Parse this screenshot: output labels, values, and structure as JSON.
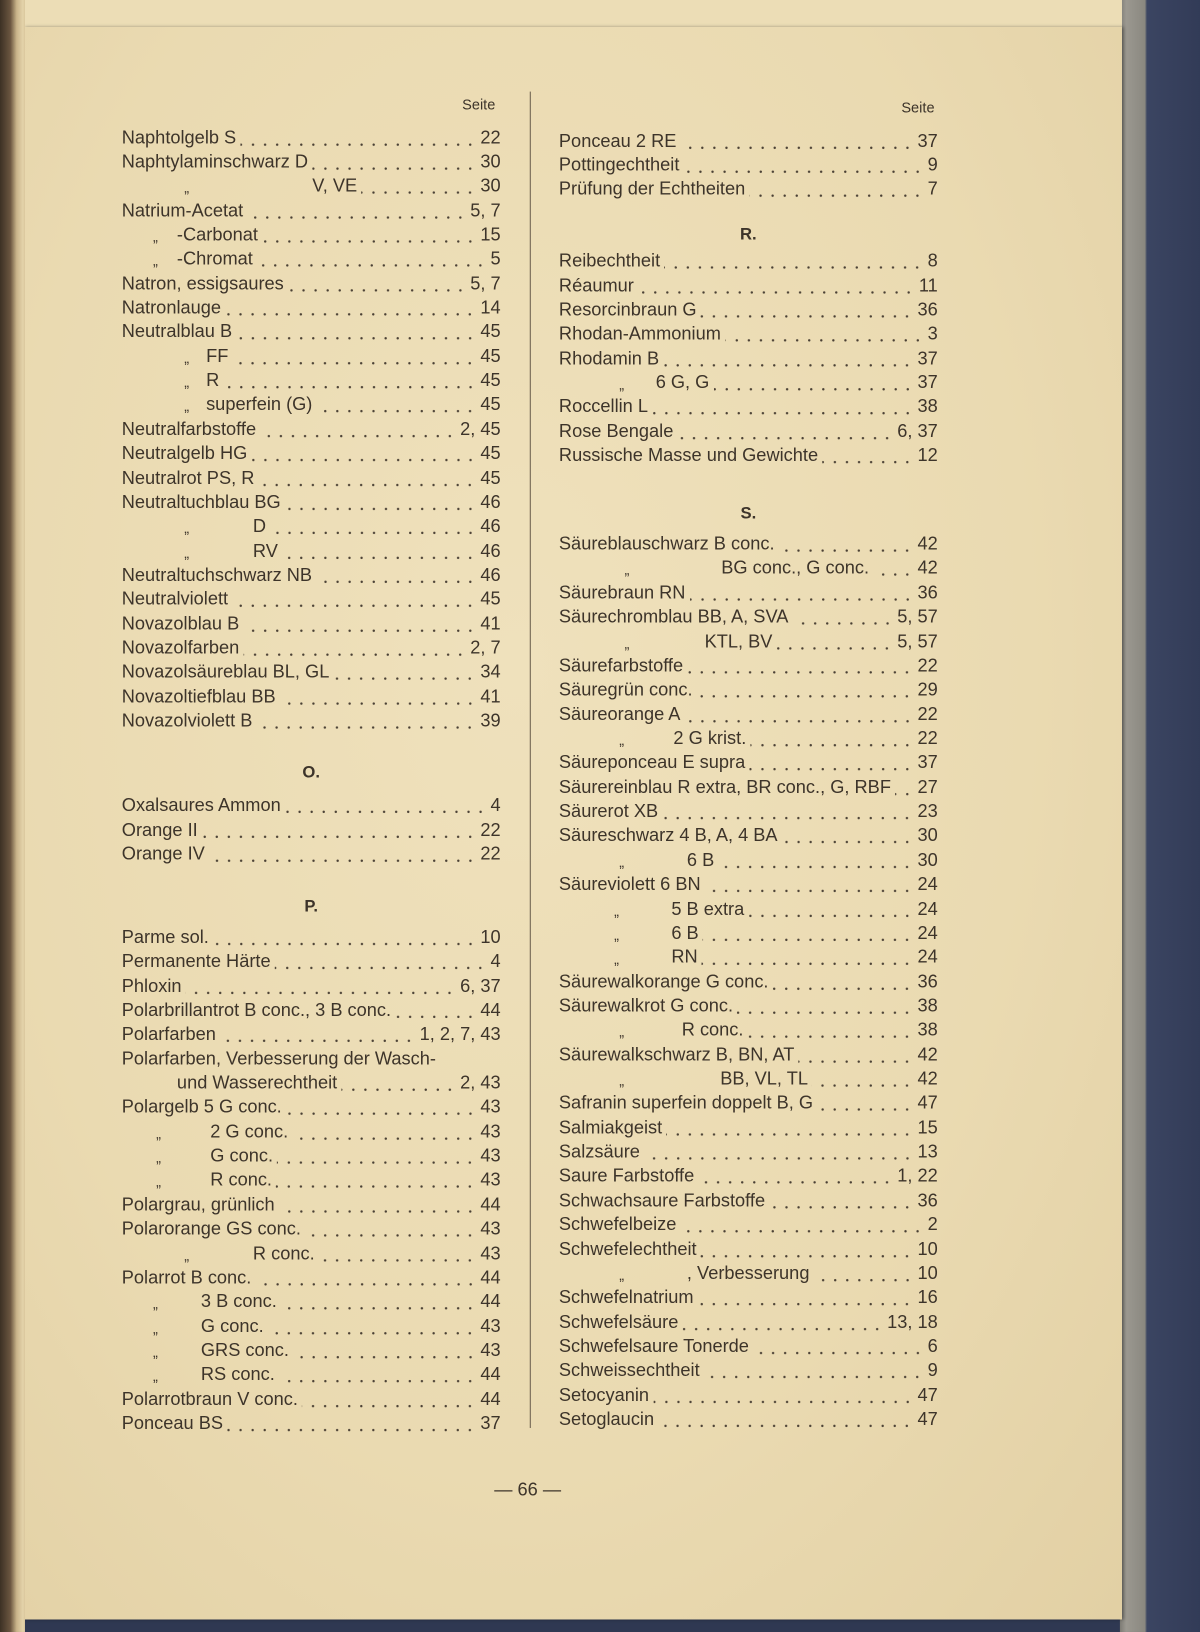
{
  "left_column": {
    "seite_label": "Seite",
    "items": [
      {
        "label": "Naphtolgelb S",
        "page": "22"
      },
      {
        "label": "Naphtylaminschwarz D",
        "page": "30"
      },
      {
        "ditto": "„",
        "label": "V, VE",
        "page": "30"
      },
      {
        "label": "Natrium-Acetat",
        "page": "5, 7"
      },
      {
        "ditto": "„",
        "label": "-Carbonat",
        "page": "15"
      },
      {
        "ditto": "„",
        "label": "-Chromat",
        "page": "5"
      },
      {
        "label": "Natron, essigsaures",
        "page": "5, 7"
      },
      {
        "label": "Natronlauge",
        "page": "14"
      },
      {
        "label": "Neutralblau B",
        "page": "45"
      },
      {
        "ditto": "„",
        "label": "FF",
        "page": "45"
      },
      {
        "ditto": "„",
        "label": "R",
        "page": "45"
      },
      {
        "ditto": "„",
        "label": "superfein (G)",
        "page": "45"
      },
      {
        "label": "Neutralfarbstoffe",
        "page": "2, 45"
      },
      {
        "label": "Neutralgelb HG",
        "page": "45"
      },
      {
        "label": "Neutralrot PS, R",
        "page": "45"
      },
      {
        "label": "Neutraltuchblau BG",
        "page": "46"
      },
      {
        "ditto": "„",
        "label": "D",
        "page": "46"
      },
      {
        "ditto": "„",
        "label": "RV",
        "page": "46"
      },
      {
        "label": "Neutraltuchschwarz NB",
        "page": "46"
      },
      {
        "label": "Neutralviolett",
        "page": "45"
      },
      {
        "label": "Novazolblau B",
        "page": "41"
      },
      {
        "label": "Novazolfarben",
        "page": "2, 7"
      },
      {
        "label": "Novazolsäureblau BL, GL",
        "page": "34"
      },
      {
        "label": "Novazoltiefblau BB",
        "page": "41"
      },
      {
        "label": "Novazolviolett B",
        "page": "39"
      },
      {
        "heading": "O."
      },
      {
        "label": "Oxalsaures Ammon",
        "page": "4"
      },
      {
        "label": "Orange II",
        "page": "22"
      },
      {
        "label": "Orange IV",
        "page": "22"
      },
      {
        "heading": "P."
      },
      {
        "label": "Parme sol.",
        "page": "10"
      },
      {
        "label": "Permanente Härte",
        "page": "4"
      },
      {
        "label": "Phloxin",
        "page": "6, 37"
      },
      {
        "label": "Polarbrillantrot B conc., 3 B conc.",
        "page": "44"
      },
      {
        "label": "Polarfarben",
        "page": "1, 2, 7, 43"
      },
      {
        "label": "Polarfarben, Verbesserung der Wasch-",
        "page": ""
      },
      {
        "label": "und Wasserechtheit",
        "page": "2, 43"
      },
      {
        "label": "Polargelb 5 G conc.",
        "page": "43"
      },
      {
        "ditto": "„",
        "label": "2 G conc.",
        "page": "43"
      },
      {
        "ditto": "„",
        "label": "G conc.",
        "page": "43"
      },
      {
        "ditto": "„",
        "label": "R conc.",
        "page": "43"
      },
      {
        "label": "Polargrau, grünlich",
        "page": "44"
      },
      {
        "label": "Polarorange GS conc.",
        "page": "43"
      },
      {
        "ditto": "„",
        "label": "R conc.",
        "page": "43"
      },
      {
        "label": "Polarrot B conc.",
        "page": "44"
      },
      {
        "ditto": "„",
        "label": "3 B conc.",
        "page": "44"
      },
      {
        "ditto": "„",
        "label": "G conc.",
        "page": "43"
      },
      {
        "ditto": "„",
        "label": "GRS conc.",
        "page": "43"
      },
      {
        "ditto": "„",
        "label": "RS conc.",
        "page": "44"
      },
      {
        "label": "Polarrotbraun V conc.",
        "page": "44"
      },
      {
        "label": "Ponceau BS",
        "page": "37"
      }
    ]
  },
  "right_column": {
    "seite_label": "Seite",
    "items": [
      {
        "label": "Ponceau 2 RE",
        "page": "37"
      },
      {
        "label": "Pottingechtheit",
        "page": "9"
      },
      {
        "label": "Prüfung der Echtheiten",
        "page": "7"
      },
      {
        "heading": "R."
      },
      {
        "label": "Reibechtheit",
        "page": "8"
      },
      {
        "label": "Réaumur",
        "page": "11"
      },
      {
        "label": "Resorcinbraun G",
        "page": "36"
      },
      {
        "label": "Rhodan-Ammonium",
        "page": "3"
      },
      {
        "label": "Rhodamin B",
        "page": "37"
      },
      {
        "ditto": "„",
        "label": "6 G, G",
        "page": "37"
      },
      {
        "label": "Roccellin L",
        "page": "38"
      },
      {
        "label": "Rose Bengale",
        "page": "6, 37"
      },
      {
        "label": "Russische Masse und Gewichte",
        "page": "12"
      },
      {
        "heading": "S."
      },
      {
        "label": "Säureblauschwarz B conc.",
        "page": "42"
      },
      {
        "ditto": "„",
        "label": "BG conc., G conc.",
        "page": "42"
      },
      {
        "label": "Säurebraun RN",
        "page": "36"
      },
      {
        "label": "Säurechromblau BB, A, SVA",
        "page": "5, 57"
      },
      {
        "ditto": "„",
        "label": "KTL, BV",
        "page": "5, 57"
      },
      {
        "label": "Säurefarbstoffe",
        "page": "22"
      },
      {
        "label": "Säuregrün conc.",
        "page": "29"
      },
      {
        "label": "Säureorange A",
        "page": "22"
      },
      {
        "ditto": "„",
        "label": "2 G krist.",
        "page": "22"
      },
      {
        "label": "Säureponceau E supra",
        "page": "37"
      },
      {
        "label": "Säurereinblau R extra, BR conc., G, RBF",
        "page": "27"
      },
      {
        "label": "Säurerot XB",
        "page": "23"
      },
      {
        "label": "Säureschwarz 4 B, A, 4 BA",
        "page": "30"
      },
      {
        "ditto": "„",
        "label": "6 B",
        "page": "30"
      },
      {
        "label": "Säureviolett 6 BN",
        "page": "24"
      },
      {
        "ditto": "„",
        "label": "5 B extra",
        "page": "24"
      },
      {
        "ditto": "„",
        "label": "6 B",
        "page": "24"
      },
      {
        "ditto": "„",
        "label": "RN",
        "page": "24"
      },
      {
        "label": "Säurewalkorange G conc.",
        "page": "36"
      },
      {
        "label": "Säurewalkrot G conc.",
        "page": "38"
      },
      {
        "ditto": "„",
        "label": "R conc.",
        "page": "38"
      },
      {
        "label": "Säurewalkschwarz B, BN, AT",
        "page": "42"
      },
      {
        "ditto": "„",
        "label": "BB, VL, TL",
        "page": "42"
      },
      {
        "label": "Safranin superfein doppelt B, G",
        "page": "47"
      },
      {
        "label": "Salmiakgeist",
        "page": "15"
      },
      {
        "label": "Salzsäure",
        "page": "13"
      },
      {
        "label": "Saure Farbstoffe",
        "page": "1, 22"
      },
      {
        "label": "Schwachsaure Farbstoffe",
        "page": "36"
      },
      {
        "label": "Schwefelbeize",
        "page": "2"
      },
      {
        "label": "Schwefelechtheit",
        "page": "10"
      },
      {
        "ditto": "„",
        "label": ", Verbesserung",
        "page": "10"
      },
      {
        "label": "Schwefelnatrium",
        "page": "16"
      },
      {
        "label": "Schwefelsäure",
        "page": "13, 18"
      },
      {
        "label": "Schwefelsaure Tonerde",
        "page": "6"
      },
      {
        "label": "Schweissechtheit",
        "page": "9"
      },
      {
        "label": "Setocyanin",
        "page": "47"
      },
      {
        "label": "Setoglaucin",
        "page": "47"
      }
    ]
  },
  "page_number": "— 66 —",
  "colors": {
    "paper": "#ecddb6",
    "ink": "#3d342a",
    "cover": "#323b57"
  }
}
